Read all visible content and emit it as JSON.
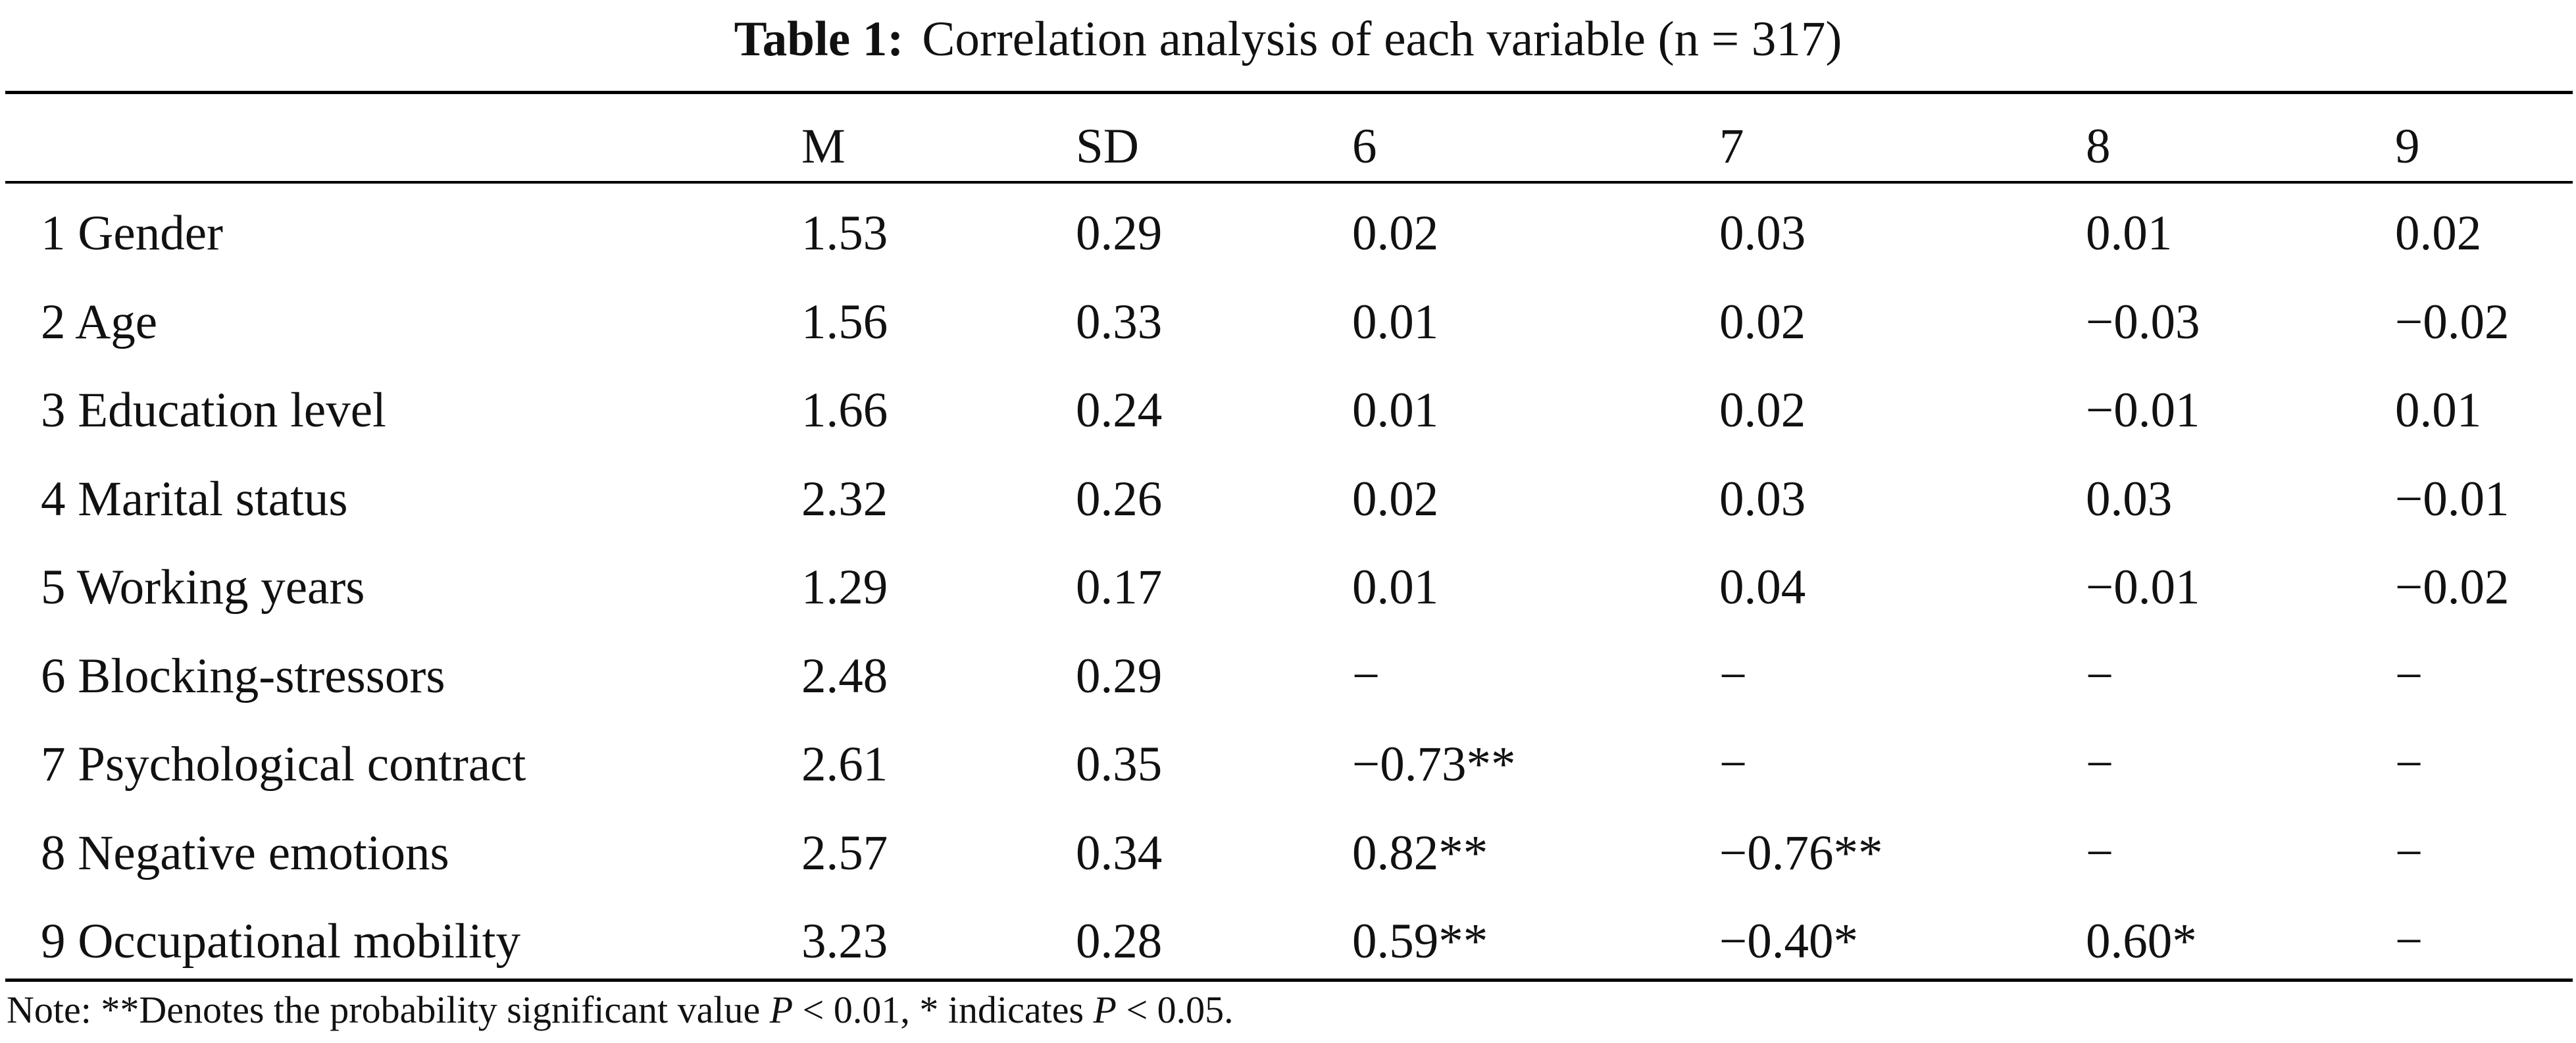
{
  "table": {
    "label": "Table 1:",
    "title": "Correlation analysis of each variable (n = 317)",
    "columns": [
      "",
      "M",
      "SD",
      "6",
      "7",
      "8",
      "9"
    ],
    "rows": [
      [
        "1 Gender",
        "1.53",
        "0.29",
        "0.02",
        "0.03",
        "0.01",
        "0.02"
      ],
      [
        "2 Age",
        "1.56",
        "0.33",
        "0.01",
        "0.02",
        "−0.03",
        "−0.02"
      ],
      [
        "3 Education level",
        "1.66",
        "0.24",
        "0.01",
        "0.02",
        "−0.01",
        "0.01"
      ],
      [
        "4 Marital status",
        "2.32",
        "0.26",
        "0.02",
        "0.03",
        "0.03",
        "−0.01"
      ],
      [
        "5 Working years",
        "1.29",
        "0.17",
        "0.01",
        "0.04",
        "−0.01",
        "−0.02"
      ],
      [
        "6 Blocking-stressors",
        "2.48",
        "0.29",
        "−",
        "−",
        "−",
        "−"
      ],
      [
        "7 Psychological contract",
        "2.61",
        "0.35",
        "−0.73**",
        "−",
        "−",
        "−"
      ],
      [
        "8 Negative emotions",
        "2.57",
        "0.34",
        "0.82**",
        "−0.76**",
        "−",
        "−"
      ],
      [
        "9 Occupational mobility",
        "3.23",
        "0.28",
        "0.59**",
        "−0.40*",
        "0.60*",
        "−"
      ]
    ]
  },
  "note": {
    "prefix": "Note: **Denotes the probability significant value ",
    "p1_symbol": "P",
    "p1_value": " < 0.01, * indicates ",
    "p2_symbol": "P",
    "p2_value": " < 0.05."
  }
}
